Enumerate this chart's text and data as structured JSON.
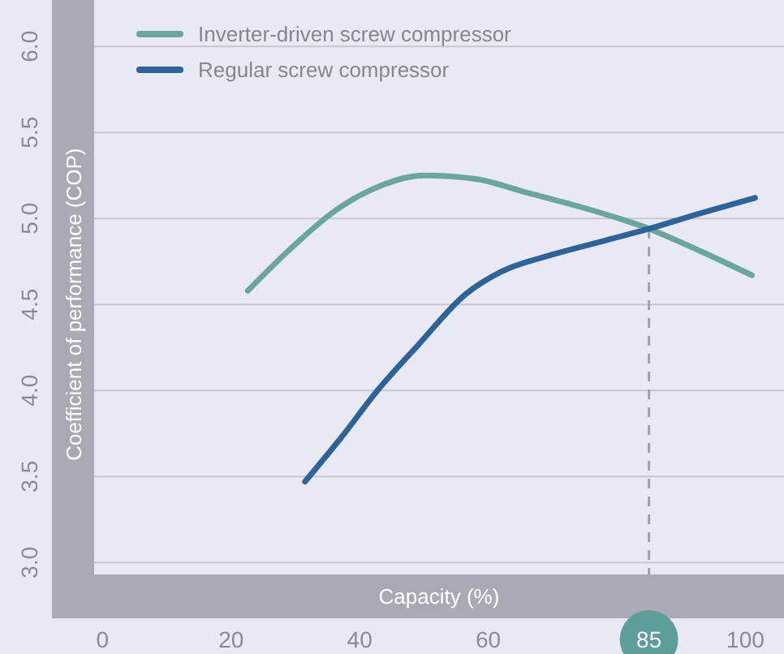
{
  "chart_data": {
    "type": "line",
    "xlabel": "Capacity (%)",
    "ylabel": "Coefficient of performance (COP)",
    "xlim": [
      -1.3,
      106
    ],
    "ylim": [
      2.93,
      6.27
    ],
    "xticks": [
      0,
      20,
      40,
      60,
      85,
      100
    ],
    "yticks": [
      {
        "value": 3,
        "label": "3.0"
      },
      3.5,
      {
        "value": 4,
        "label": "4.0"
      },
      4.5,
      {
        "value": 5,
        "label": "5.0"
      },
      5.5,
      {
        "value": 6,
        "label": "6.0"
      }
    ],
    "grid": "y",
    "legend": "top left",
    "line_style": "solid",
    "marker": "none",
    "ref_lines": [
      {
        "axis": "x",
        "value": 85,
        "color": "#a0a0a8",
        "line_style": "dashed"
      }
    ],
    "series": [
      {
        "name": "Inverter-driven screw compressor",
        "color": "#6aa59e",
        "x": [
          22.6,
          30,
          36,
          42,
          50,
          58,
          66,
          75,
          85,
          93,
          101
        ],
        "values": [
          4.58,
          4.85,
          5.04,
          5.17,
          5.25,
          5.23,
          5.15,
          5.06,
          4.94,
          4.81,
          4.67
        ]
      },
      {
        "name": "Regular screw compressor",
        "color": "#2e6399",
        "x": [
          31.5,
          37,
          43,
          49,
          56.5,
          62,
          70,
          78,
          85,
          93,
          101.5
        ],
        "values": [
          3.47,
          3.72,
          4.01,
          4.26,
          4.56,
          4.69,
          4.79,
          4.87,
          4.94,
          5.03,
          5.12
        ]
      }
    ]
  }
}
